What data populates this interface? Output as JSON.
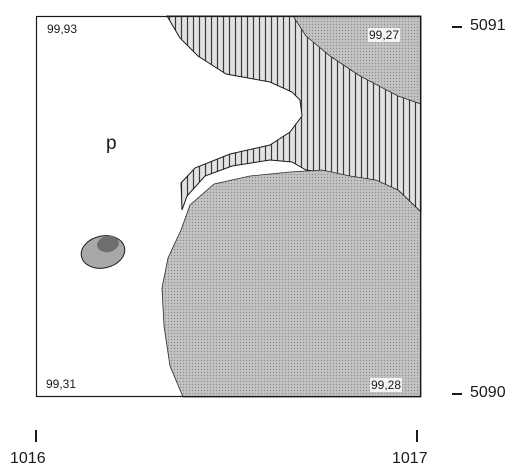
{
  "map": {
    "corner_values": {
      "top_left": "99,93",
      "top_right": "99,27",
      "bottom_left": "99,31",
      "bottom_right": "99,28"
    },
    "area_label": "p",
    "y_axis": {
      "top": "5091",
      "bottom": "5090"
    },
    "x_axis": {
      "left": "1016",
      "right": "1017"
    },
    "fills": {
      "hatched": "vertical-line-hatch",
      "stippled": "grey-dot-stipple",
      "patch_outer": "#a8a8a8",
      "patch_inner": "#6e6e6e",
      "frame": "#1a1a1a"
    }
  }
}
